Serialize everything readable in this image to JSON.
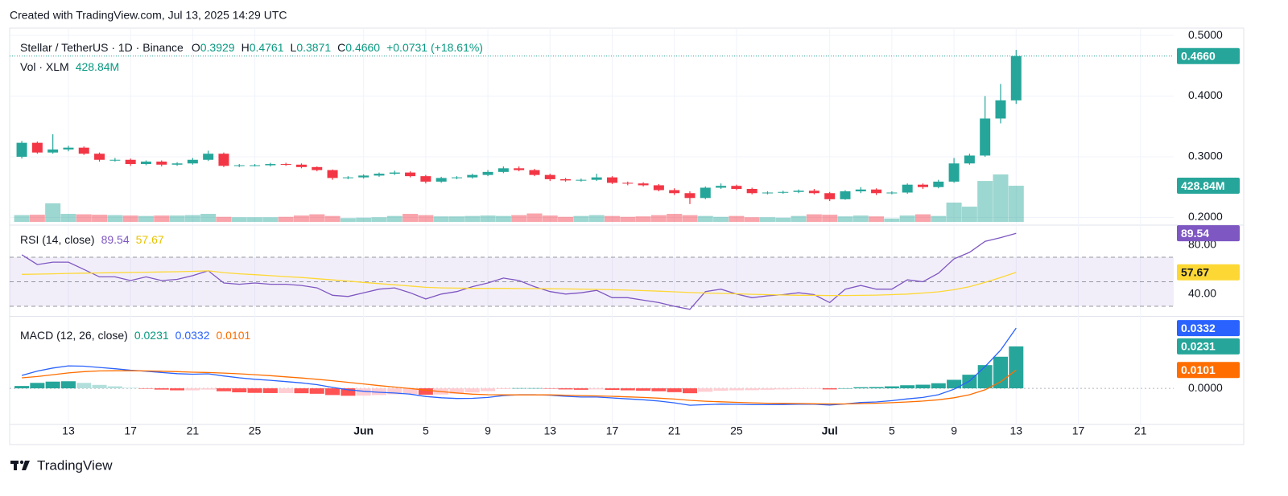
{
  "header": "Created with TradingView.com, Jul 13, 2025 14:29 UTC",
  "footer": "TradingView",
  "chart_data": {
    "type": "candlestick",
    "symbol": "Stellar / TetherUS · 1D · Binance",
    "ohlc": [
      {
        "label": "O",
        "value": "0.3929"
      },
      {
        "label": "H",
        "value": "0.4761"
      },
      {
        "label": "L",
        "value": "0.3871"
      },
      {
        "label": "C",
        "value": "0.4660"
      }
    ],
    "change": "+0.0731 (+18.61%)",
    "up_color": "#26a69a",
    "down_color": "#f23645",
    "xlim": [
      -0.78,
      74.14
    ],
    "xticks": [
      {
        "value": 3,
        "label": "13"
      },
      {
        "value": 7,
        "label": "17"
      },
      {
        "value": 11,
        "label": "21"
      },
      {
        "value": 15,
        "label": "25"
      },
      {
        "value": 22,
        "label": "Jun"
      },
      {
        "value": 26,
        "label": "5"
      },
      {
        "value": 30,
        "label": "9"
      },
      {
        "value": 34,
        "label": "13"
      },
      {
        "value": 38,
        "label": "17"
      },
      {
        "value": 42,
        "label": "21"
      },
      {
        "value": 46,
        "label": "25"
      },
      {
        "value": 52,
        "label": "Jul"
      },
      {
        "value": 56,
        "label": "5"
      },
      {
        "value": 60,
        "label": "9"
      },
      {
        "value": 64,
        "label": "13"
      },
      {
        "value": 68,
        "label": "17"
      },
      {
        "value": 72,
        "label": "21"
      }
    ],
    "ylim": [
      0.19,
      0.512
    ],
    "yticks": [
      {
        "value": 0.2,
        "label": "0.2000"
      },
      {
        "value": 0.3,
        "label": "0.3000"
      },
      {
        "value": 0.4,
        "label": "0.4000"
      },
      {
        "value": 0.5,
        "label": "0.5000"
      }
    ],
    "grid": true,
    "open": [
      0.3,
      0.323,
      0.307,
      0.312,
      0.315,
      0.305,
      0.295,
      0.295,
      0.288,
      0.292,
      0.287,
      0.289,
      0.295,
      0.305,
      0.285,
      0.286,
      0.286,
      0.288,
      0.287,
      0.283,
      0.278,
      0.265,
      0.266,
      0.269,
      0.272,
      0.274,
      0.268,
      0.259,
      0.265,
      0.266,
      0.27,
      0.275,
      0.281,
      0.278,
      0.27,
      0.263,
      0.261,
      0.262,
      0.266,
      0.257,
      0.256,
      0.253,
      0.245,
      0.24,
      0.232,
      0.249,
      0.252,
      0.247,
      0.24,
      0.241,
      0.242,
      0.244,
      0.24,
      0.23,
      0.243,
      0.246,
      0.24,
      0.241,
      0.254,
      0.25,
      0.259,
      0.289,
      0.302,
      0.363,
      0.3929
    ],
    "high": [
      0.326,
      0.325,
      0.337,
      0.318,
      0.317,
      0.307,
      0.298,
      0.297,
      0.294,
      0.294,
      0.291,
      0.298,
      0.31,
      0.307,
      0.288,
      0.288,
      0.29,
      0.29,
      0.289,
      0.284,
      0.279,
      0.268,
      0.271,
      0.274,
      0.277,
      0.276,
      0.27,
      0.267,
      0.268,
      0.272,
      0.278,
      0.284,
      0.284,
      0.28,
      0.272,
      0.265,
      0.264,
      0.272,
      0.268,
      0.259,
      0.258,
      0.255,
      0.248,
      0.243,
      0.251,
      0.256,
      0.254,
      0.249,
      0.243,
      0.244,
      0.246,
      0.247,
      0.242,
      0.245,
      0.25,
      0.248,
      0.243,
      0.256,
      0.256,
      0.262,
      0.298,
      0.305,
      0.4,
      0.42,
      0.4761
    ],
    "low": [
      0.297,
      0.305,
      0.305,
      0.309,
      0.303,
      0.292,
      0.292,
      0.285,
      0.286,
      0.284,
      0.285,
      0.287,
      0.293,
      0.283,
      0.283,
      0.284,
      0.284,
      0.285,
      0.281,
      0.276,
      0.262,
      0.263,
      0.264,
      0.267,
      0.27,
      0.266,
      0.256,
      0.257,
      0.263,
      0.264,
      0.268,
      0.273,
      0.276,
      0.268,
      0.26,
      0.259,
      0.259,
      0.26,
      0.255,
      0.253,
      0.251,
      0.243,
      0.237,
      0.222,
      0.23,
      0.247,
      0.245,
      0.238,
      0.238,
      0.239,
      0.24,
      0.238,
      0.227,
      0.229,
      0.24,
      0.237,
      0.238,
      0.239,
      0.247,
      0.248,
      0.257,
      0.287,
      0.3,
      0.355,
      0.3871
    ],
    "close": [
      0.323,
      0.307,
      0.312,
      0.315,
      0.305,
      0.295,
      0.295,
      0.288,
      0.292,
      0.287,
      0.289,
      0.295,
      0.305,
      0.285,
      0.286,
      0.286,
      0.288,
      0.287,
      0.283,
      0.278,
      0.265,
      0.266,
      0.269,
      0.272,
      0.274,
      0.268,
      0.259,
      0.265,
      0.266,
      0.27,
      0.275,
      0.281,
      0.278,
      0.27,
      0.263,
      0.261,
      0.262,
      0.266,
      0.257,
      0.256,
      0.253,
      0.245,
      0.24,
      0.232,
      0.249,
      0.252,
      0.247,
      0.24,
      0.241,
      0.242,
      0.244,
      0.24,
      0.23,
      0.243,
      0.246,
      0.24,
      0.241,
      0.254,
      0.25,
      0.259,
      0.289,
      0.302,
      0.363,
      0.393,
      0.466
    ],
    "volume": {
      "label": "Vol · XLM",
      "last": "428.84M",
      "values": [
        80,
        85,
        220,
        95,
        90,
        85,
        80,
        75,
        70,
        75,
        75,
        80,
        95,
        60,
        55,
        55,
        55,
        60,
        75,
        90,
        70,
        45,
        50,
        55,
        70,
        95,
        80,
        65,
        65,
        70,
        75,
        70,
        80,
        100,
        75,
        60,
        70,
        80,
        70,
        60,
        65,
        80,
        95,
        80,
        70,
        60,
        70,
        55,
        55,
        50,
        70,
        90,
        85,
        65,
        75,
        65,
        40,
        75,
        90,
        70,
        229,
        181,
        486,
        563,
        428.84
      ]
    },
    "rsi": {
      "label": "RSI (14, close)",
      "last": "89.54",
      "ma_last": "57.67",
      "color": "#7e57c2",
      "ma_color": "#fdd835",
      "ylim": [
        22.8,
        94.9
      ],
      "yticks": [
        {
          "value": 40,
          "label": "40.00"
        },
        {
          "value": 80,
          "label": "80.00"
        }
      ],
      "bands": [
        70,
        50,
        30
      ],
      "values": [
        72,
        64,
        66,
        66,
        60,
        54,
        54,
        51,
        54,
        51,
        52,
        55,
        59,
        49,
        48,
        49,
        48,
        48,
        47,
        45,
        39,
        38,
        41,
        44,
        45,
        41,
        36,
        40,
        42,
        46,
        49,
        53,
        51,
        46,
        42,
        40,
        41,
        43,
        37,
        37,
        35,
        33,
        30,
        27.5,
        42,
        44,
        40,
        37,
        38.5,
        39.5,
        41,
        39.5,
        33,
        44,
        47,
        44,
        44,
        51.6,
        50,
        57,
        68.7,
        74,
        83,
        86,
        89.54
      ],
      "ma": [
        56,
        56.2,
        56.5,
        56.8,
        57,
        57.2,
        57.4,
        57.6,
        57.8,
        58,
        58.2,
        58.5,
        58.9,
        57.5,
        56.5,
        55.8,
        55,
        54.2,
        53.5,
        52.5,
        51.5,
        50.5,
        49.5,
        48.5,
        47.5,
        46.5,
        45.5,
        45,
        44.8,
        44.6,
        44.6,
        44.6,
        44.5,
        44.4,
        44.3,
        44.2,
        44,
        43.8,
        43.5,
        43.2,
        42.8,
        42.3,
        41.8,
        41.2,
        40.8,
        40.5,
        40.2,
        39.8,
        39.5,
        39.2,
        39,
        38.9,
        38.8,
        38.8,
        38.9,
        39.1,
        39.5,
        40,
        40.8,
        41.8,
        43.5,
        46,
        49.5,
        53.5,
        57.67
      ]
    },
    "macd": {
      "label": "MACD (12, 26, close)",
      "hist_last": "0.0231",
      "macd_last": "0.0332",
      "signal_last": "0.0101",
      "macd_color": "#2962ff",
      "signal_color": "#ff6d00",
      "ylim": [
        -0.0199,
        0.039
      ],
      "yticks": [
        {
          "value": 0,
          "label": "0.0000"
        }
      ],
      "macd": [
        0.0071,
        0.0095,
        0.0112,
        0.0124,
        0.0122,
        0.0115,
        0.0108,
        0.01,
        0.0094,
        0.0087,
        0.0081,
        0.0078,
        0.008,
        0.0068,
        0.0058,
        0.005,
        0.0044,
        0.0037,
        0.003,
        0.002,
        0.0005,
        -0.0008,
        -0.0016,
        -0.0022,
        -0.0026,
        -0.0032,
        -0.0045,
        -0.0052,
        -0.0056,
        -0.0055,
        -0.005,
        -0.004,
        -0.0035,
        -0.0035,
        -0.0038,
        -0.0044,
        -0.0048,
        -0.0048,
        -0.0053,
        -0.0058,
        -0.0063,
        -0.007,
        -0.008,
        -0.0093,
        -0.009,
        -0.0087,
        -0.0088,
        -0.009,
        -0.009,
        -0.0089,
        -0.0088,
        -0.0088,
        -0.0092,
        -0.0086,
        -0.0078,
        -0.0075,
        -0.0068,
        -0.0058,
        -0.005,
        -0.0035,
        -0.0005,
        0.004,
        0.012,
        0.021,
        0.0332
      ],
      "signal": [
        0.0058,
        0.0065,
        0.0075,
        0.0085,
        0.0092,
        0.0096,
        0.0097,
        0.0097,
        0.0096,
        0.0094,
        0.0092,
        0.0089,
        0.0087,
        0.0084,
        0.008,
        0.0075,
        0.007,
        0.0063,
        0.0057,
        0.005,
        0.0042,
        0.0033,
        0.0024,
        0.0015,
        0.0007,
        -0.0001,
        -0.001,
        -0.0018,
        -0.0026,
        -0.0032,
        -0.0035,
        -0.0036,
        -0.0036,
        -0.0036,
        -0.0036,
        -0.0038,
        -0.004,
        -0.0042,
        -0.0044,
        -0.0047,
        -0.005,
        -0.0054,
        -0.0059,
        -0.0066,
        -0.0071,
        -0.0074,
        -0.0077,
        -0.008,
        -0.0082,
        -0.0083,
        -0.0084,
        -0.0085,
        -0.0086,
        -0.0086,
        -0.0084,
        -0.0082,
        -0.0079,
        -0.0075,
        -0.007,
        -0.0063,
        -0.0052,
        -0.0035,
        -0.0008,
        0.0036,
        0.0101
      ],
      "histogram": [
        0.0013,
        0.003,
        0.0037,
        0.0039,
        0.003,
        0.0019,
        0.0011,
        0.0003,
        -0.0002,
        -0.0007,
        -0.0011,
        -0.0011,
        -0.0007,
        -0.0016,
        -0.0022,
        -0.0025,
        -0.0026,
        -0.0026,
        -0.0027,
        -0.003,
        -0.0037,
        -0.0041,
        -0.004,
        -0.0037,
        -0.0033,
        -0.0031,
        -0.0035,
        -0.0034,
        -0.003,
        -0.0023,
        -0.0015,
        -0.0004,
        0.0001,
        0.0001,
        -0.0002,
        -0.0006,
        -0.0008,
        -0.0006,
        -0.0009,
        -0.0011,
        -0.0013,
        -0.0016,
        -0.0021,
        -0.0027,
        -0.0019,
        -0.0013,
        -0.0011,
        -0.001,
        -0.0008,
        -0.0006,
        -0.0004,
        -0.0003,
        -0.0006,
        0.0,
        0.0006,
        0.0007,
        0.0011,
        0.0017,
        0.002,
        0.0028,
        0.0047,
        0.0075,
        0.0128,
        0.0174,
        0.0231
      ]
    }
  }
}
